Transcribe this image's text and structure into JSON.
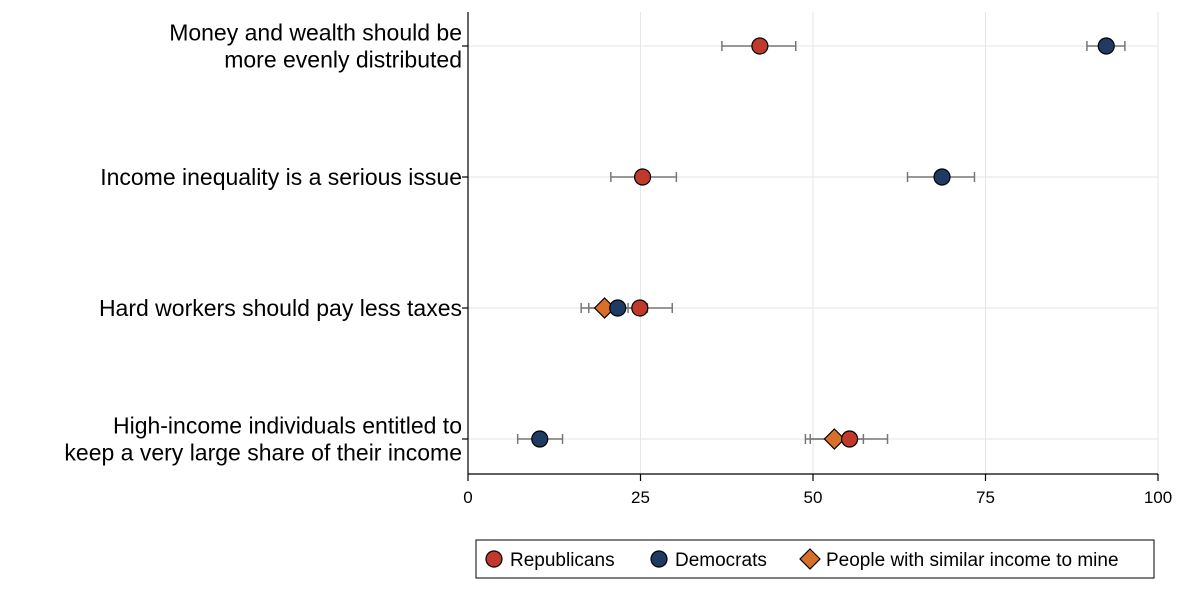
{
  "chart_data": {
    "type": "scatter",
    "title": "",
    "xlabel": "",
    "ylabel": "",
    "xlim": [
      0,
      100
    ],
    "xticks": [
      "0",
      "25",
      "50",
      "75",
      "100"
    ],
    "grid": true,
    "legend_position": "bottom-right",
    "categories": [
      {
        "lines": [
          "Money and wealth should be",
          "more evenly distributed"
        ]
      },
      {
        "lines": [
          "Income inequality is a serious issue"
        ]
      },
      {
        "lines": [
          "Hard workers should pay less taxes"
        ]
      },
      {
        "lines": [
          "High-income individuals entitled to",
          "keep a very large share of their income"
        ]
      }
    ],
    "series": [
      {
        "name": "Republicans",
        "marker": "circle",
        "color": "#c0392b",
        "values": [
          {
            "x": 42.3,
            "lo": 36.8,
            "hi": 47.5
          },
          {
            "x": 25.3,
            "lo": 20.7,
            "hi": 30.2
          },
          {
            "x": 24.9,
            "lo": 20.3,
            "hi": 29.6
          },
          {
            "x": 55.3,
            "lo": 49.6,
            "hi": 60.8
          }
        ]
      },
      {
        "name": "Democrats",
        "marker": "circle",
        "color": "#1f3b63",
        "values": [
          {
            "x": 92.5,
            "lo": 89.7,
            "hi": 95.2
          },
          {
            "x": 68.7,
            "lo": 63.7,
            "hi": 73.4
          },
          {
            "x": 21.7,
            "lo": 17.5,
            "hi": 26.0
          },
          {
            "x": 10.4,
            "lo": 7.2,
            "hi": 13.7
          }
        ]
      },
      {
        "name": "People with similar income to mine",
        "marker": "diamond",
        "color": "#d9702a",
        "values": [
          null,
          null,
          {
            "x": 19.8,
            "lo": 16.4,
            "hi": 23.2
          },
          {
            "x": 53.1,
            "lo": 48.9,
            "hi": 57.3
          }
        ]
      }
    ]
  }
}
